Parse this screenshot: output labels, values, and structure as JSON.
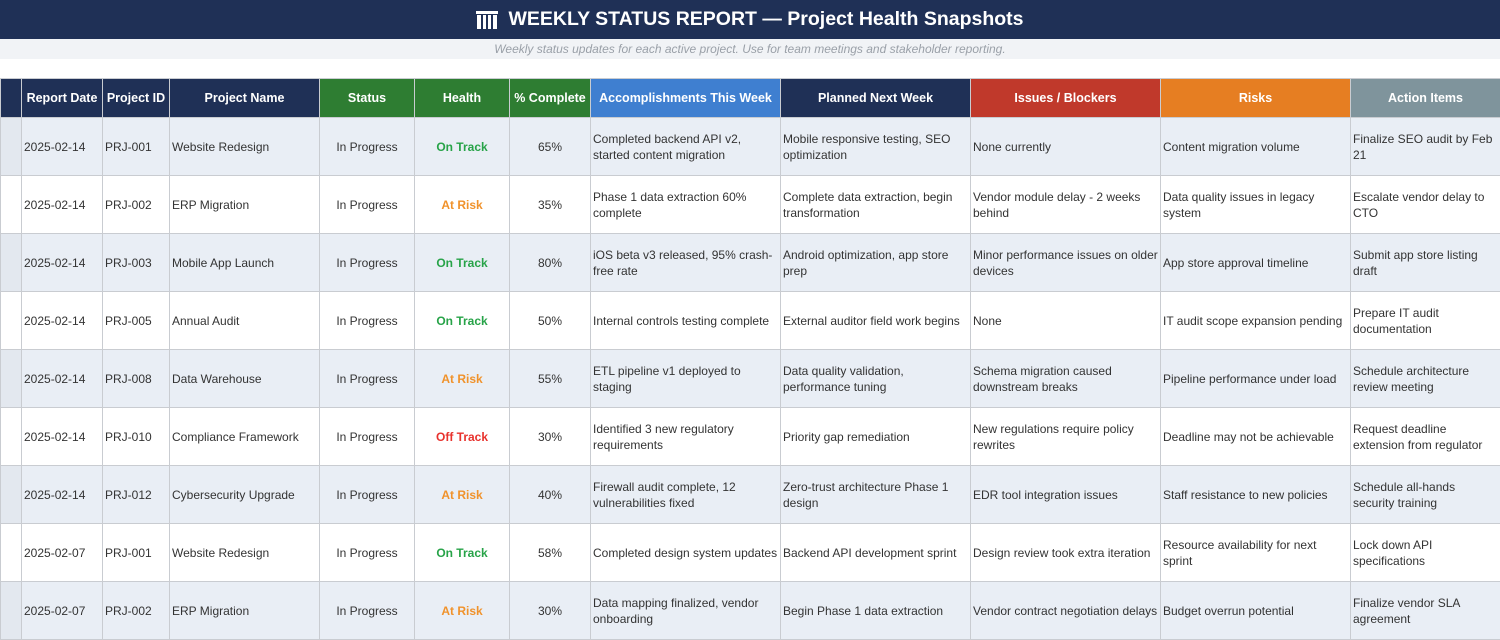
{
  "title": "WEEKLY STATUS REPORT — Project Health Snapshots",
  "subtitle": "Weekly status updates for each active project. Use for team meetings and stakeholder reporting.",
  "logo_icon": "building-columns-icon",
  "colors": {
    "title_bg": "#1f3056",
    "header_navy": "#1f3056",
    "header_green": "#2e7d32",
    "header_blue": "#3f7fd0",
    "header_red": "#c0392b",
    "header_orange": "#e67e22",
    "header_gray": "#7f949c",
    "on_track": "#27a348",
    "at_risk": "#f0922b",
    "off_track": "#e8322d"
  },
  "columns": [
    {
      "label": "Report Date",
      "color": "#1f3056"
    },
    {
      "label": "Project ID",
      "color": "#1f3056"
    },
    {
      "label": "Project Name",
      "color": "#1f3056"
    },
    {
      "label": "Status",
      "color": "#2e7d32"
    },
    {
      "label": "Health",
      "color": "#2e7d32"
    },
    {
      "label": "% Complete",
      "color": "#2e7d32"
    },
    {
      "label": "Accomplishments This Week",
      "color": "#3f7fd0"
    },
    {
      "label": "Planned Next Week",
      "color": "#1f3056"
    },
    {
      "label": "Issues / Blockers",
      "color": "#c0392b"
    },
    {
      "label": "Risks",
      "color": "#e67e22"
    },
    {
      "label": "Action Items",
      "color": "#7f949c"
    }
  ],
  "rows": [
    {
      "date": "2025-02-14",
      "id": "PRJ-001",
      "name": "Website Redesign",
      "status": "In Progress",
      "health": "On Track",
      "complete": "65%",
      "accomplishments": "Completed backend API v2, started content migration",
      "planned": "Mobile responsive testing, SEO optimization",
      "issues": "None currently",
      "risks": "Content migration volume",
      "actions": "Finalize SEO audit by Feb 21"
    },
    {
      "date": "2025-02-14",
      "id": "PRJ-002",
      "name": "ERP Migration",
      "status": "In Progress",
      "health": "At Risk",
      "complete": "35%",
      "accomplishments": "Phase 1 data extraction 60% complete",
      "planned": "Complete data extraction, begin transformation",
      "issues": "Vendor module delay - 2 weeks behind",
      "risks": "Data quality issues in legacy system",
      "actions": "Escalate vendor delay to CTO"
    },
    {
      "date": "2025-02-14",
      "id": "PRJ-003",
      "name": "Mobile App Launch",
      "status": "In Progress",
      "health": "On Track",
      "complete": "80%",
      "accomplishments": "iOS beta v3 released, 95% crash-free rate",
      "planned": "Android optimization, app store prep",
      "issues": "Minor performance issues on older devices",
      "risks": "App store approval timeline",
      "actions": "Submit app store listing draft"
    },
    {
      "date": "2025-02-14",
      "id": "PRJ-005",
      "name": "Annual Audit",
      "status": "In Progress",
      "health": "On Track",
      "complete": "50%",
      "accomplishments": "Internal controls testing complete",
      "planned": "External auditor field work begins",
      "issues": "None",
      "risks": "IT audit scope expansion pending",
      "actions": "Prepare IT audit documentation"
    },
    {
      "date": "2025-02-14",
      "id": "PRJ-008",
      "name": "Data Warehouse",
      "status": "In Progress",
      "health": "At Risk",
      "complete": "55%",
      "accomplishments": "ETL pipeline v1 deployed to staging",
      "planned": "Data quality validation, performance tuning",
      "issues": "Schema migration caused downstream breaks",
      "risks": "Pipeline performance under load",
      "actions": "Schedule architecture review meeting"
    },
    {
      "date": "2025-02-14",
      "id": "PRJ-010",
      "name": "Compliance Framework",
      "status": "In Progress",
      "health": "Off Track",
      "complete": "30%",
      "accomplishments": "Identified 3 new regulatory requirements",
      "planned": "Priority gap remediation",
      "issues": "New regulations require policy rewrites",
      "risks": "Deadline may not be achievable",
      "actions": "Request deadline extension from regulator"
    },
    {
      "date": "2025-02-14",
      "id": "PRJ-012",
      "name": "Cybersecurity Upgrade",
      "status": "In Progress",
      "health": "At Risk",
      "complete": "40%",
      "accomplishments": "Firewall audit complete, 12 vulnerabilities fixed",
      "planned": "Zero-trust architecture Phase 1 design",
      "issues": "EDR tool integration issues",
      "risks": "Staff resistance to new policies",
      "actions": "Schedule all-hands security training"
    },
    {
      "date": "2025-02-07",
      "id": "PRJ-001",
      "name": "Website Redesign",
      "status": "In Progress",
      "health": "On Track",
      "complete": "58%",
      "accomplishments": "Completed design system updates",
      "planned": "Backend API development sprint",
      "issues": "Design review took extra iteration",
      "risks": "Resource availability for next sprint",
      "actions": "Lock down API specifications"
    },
    {
      "date": "2025-02-07",
      "id": "PRJ-002",
      "name": "ERP Migration",
      "status": "In Progress",
      "health": "At Risk",
      "complete": "30%",
      "accomplishments": "Data mapping finalized, vendor onboarding",
      "planned": "Begin Phase 1 data extraction",
      "issues": "Vendor contract negotiation delays",
      "risks": "Budget overrun potential",
      "actions": "Finalize vendor SLA agreement"
    }
  ]
}
